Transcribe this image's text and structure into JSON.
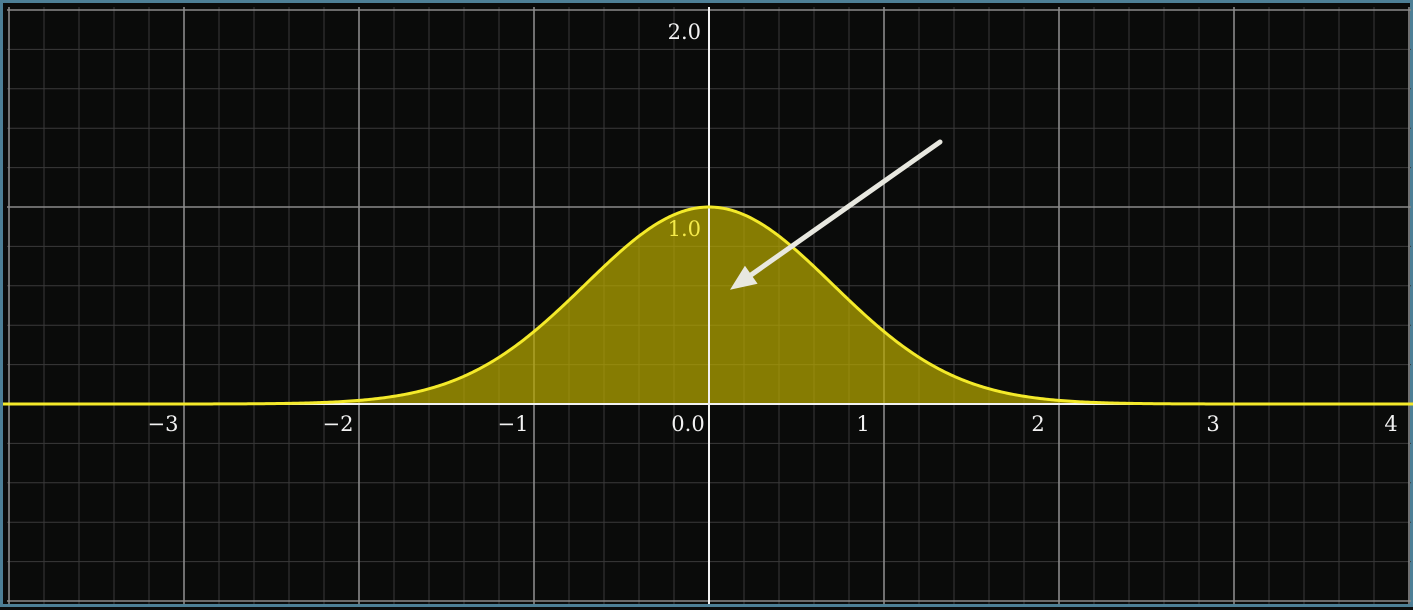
{
  "chart_data": {
    "type": "area",
    "title": "",
    "xlabel": "",
    "ylabel": "",
    "xlim": [
      -4,
      4
    ],
    "ylim": [
      -1,
      2
    ],
    "grid": true,
    "x_ticks": [
      {
        "value": -3,
        "label": "−3"
      },
      {
        "value": -2,
        "label": "−2"
      },
      {
        "value": -1,
        "label": "−1"
      },
      {
        "value": 0,
        "label": "0.0"
      },
      {
        "value": 1,
        "label": "1"
      },
      {
        "value": 2,
        "label": "2"
      },
      {
        "value": 3,
        "label": "3"
      },
      {
        "value": 4,
        "label": "4"
      }
    ],
    "y_ticks": [
      {
        "value": 1,
        "label": "1.0"
      },
      {
        "value": 2,
        "label": "2.0"
      }
    ],
    "series": [
      {
        "function": "exp(-x^2)",
        "x": [
          -4,
          -3.5,
          -3,
          -2.5,
          -2,
          -1.75,
          -1.5,
          -1.25,
          -1,
          -0.75,
          -0.5,
          -0.25,
          0,
          0.25,
          0.5,
          0.75,
          1,
          1.25,
          1.5,
          1.75,
          2,
          2.5,
          3,
          3.5,
          4
        ],
        "y": [
          0.0,
          0.0,
          0.0001,
          0.0019,
          0.0183,
          0.0468,
          0.1054,
          0.2096,
          0.3679,
          0.5698,
          0.7788,
          0.9394,
          1.0,
          0.9394,
          0.7788,
          0.5698,
          0.3679,
          0.2096,
          0.1054,
          0.0468,
          0.0183,
          0.0019,
          0.0001,
          0.0,
          0.0
        ],
        "color": "#f4ea2a",
        "fill": "#b7a800"
      }
    ],
    "annotations": [
      {
        "type": "arrow",
        "from": [
          1.32,
          1.33
        ],
        "to": [
          0.12,
          0.58
        ],
        "color": "#e8e8e0"
      }
    ]
  },
  "colors": {
    "background": "#0a0b0a",
    "frame": "#4d7f96",
    "grid_major": "#8a8a8a",
    "grid_minor": "#3a3a3a",
    "axis": "#f2f2f2",
    "curve": "#f4ea2a",
    "fill": "#b7a800"
  }
}
